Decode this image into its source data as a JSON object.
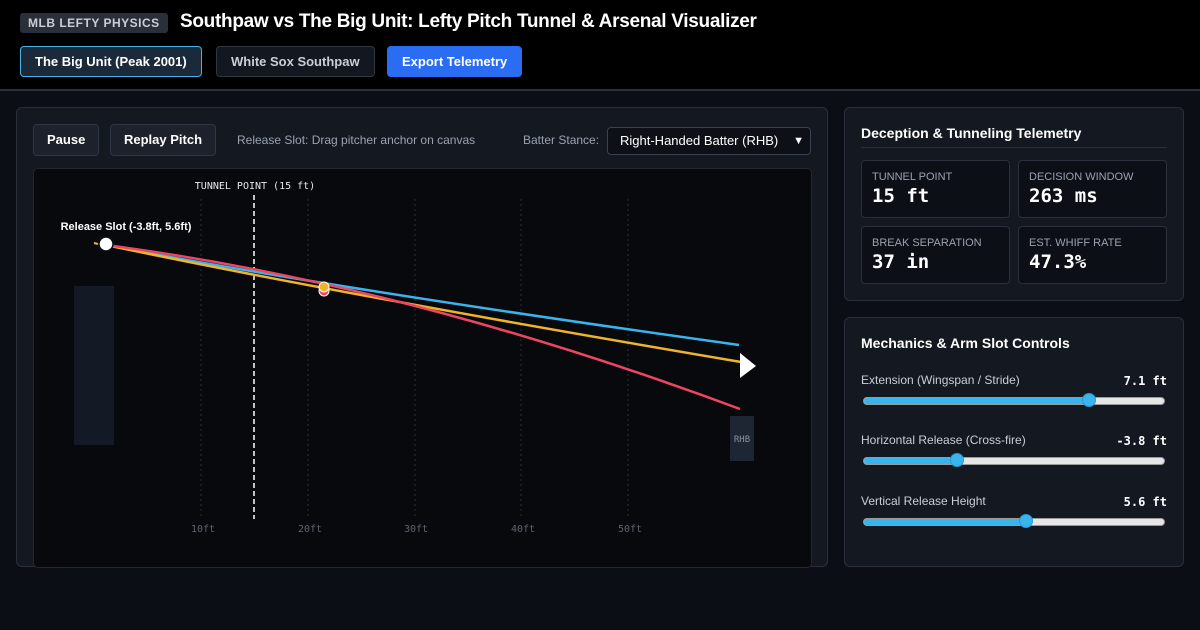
{
  "header": {
    "badge": "MLB LEFTY PHYSICS",
    "title": "Southpaw vs The Big Unit: Lefty Pitch Tunnel & Arsenal Visualizer",
    "buttons": [
      {
        "label": "The Big Unit (Peak 2001)",
        "state": "active"
      },
      {
        "label": "White Sox Southpaw",
        "state": "default"
      },
      {
        "label": "Export Telemetry",
        "state": "primary"
      }
    ]
  },
  "controls": {
    "pause_label": "Pause",
    "replay_label": "Replay Pitch",
    "release_hint": "Release Slot: Drag pitcher anchor on canvas",
    "stance_label": "Batter Stance:",
    "stance_value": "Right-Handed Batter (RHB)"
  },
  "canvas": {
    "tunnel_label": "TUNNEL POINT (15 ft)",
    "release_label": "Release Slot (-3.8ft, 5.6ft)",
    "batter_label": "RHB",
    "distance_ticks": [
      "10ft",
      "20ft",
      "30ft",
      "40ft",
      "50ft"
    ],
    "pitch_colors": [
      "#3ab4ec",
      "#f0b429",
      "#ef4565"
    ]
  },
  "telemetry": {
    "title": "Deception & Tunneling Telemetry",
    "stats": [
      {
        "label": "Tunnel Point",
        "value": "15 ft"
      },
      {
        "label": "Decision Window",
        "value": "263 ms"
      },
      {
        "label": "Break Separation",
        "value": "37 in"
      },
      {
        "label": "Est. Whiff Rate",
        "value": "47.3%"
      }
    ]
  },
  "mechanics": {
    "title": "Mechanics & Arm Slot Controls",
    "sliders": [
      {
        "label": "Extension (Wingspan / Stride)",
        "value": "7.1 ft",
        "fraction": 0.75
      },
      {
        "label": "Horizontal Release (Cross-fire)",
        "value": "-3.8 ft",
        "fraction": 0.31
      },
      {
        "label": "Vertical Release Height",
        "value": "5.6 ft",
        "fraction": 0.54
      }
    ]
  }
}
